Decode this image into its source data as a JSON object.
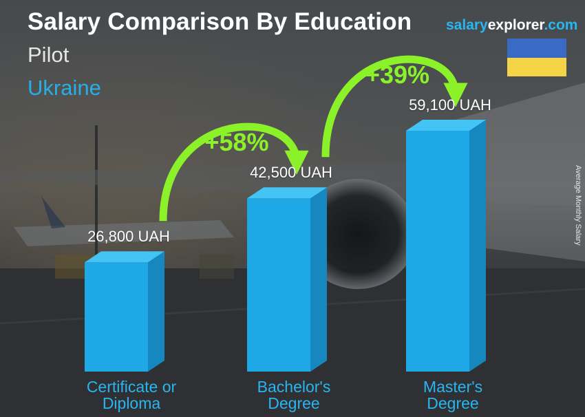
{
  "header": {
    "title": "Salary Comparison By Education",
    "subtitle": "Pilot",
    "country": "Ukraine"
  },
  "brand": {
    "part1": "salary",
    "part2": "explorer",
    "part3": ".com"
  },
  "flag": {
    "name": "ukraine-flag",
    "top_color": "#3a6bc4",
    "bottom_color": "#f5d547"
  },
  "colors": {
    "bar_front": "#1fa8e6",
    "bar_side": "#1787c0",
    "bar_top": "#44c4f5",
    "category": "#29b6f0",
    "percent": "#8bf22a"
  },
  "chart_data": {
    "type": "bar",
    "categories": [
      [
        "Certificate or",
        "Diploma"
      ],
      [
        "Bachelor's",
        "Degree"
      ],
      [
        "Master's",
        "Degree"
      ]
    ],
    "values": [
      26800,
      42500,
      59100
    ],
    "value_labels": [
      "26,800 UAH",
      "42,500 UAH",
      "59,100 UAH"
    ],
    "unit": "UAH",
    "ylabel": "Average Monthly Salary",
    "ylim": [
      0,
      70000
    ],
    "grid": false,
    "increases": [
      {
        "from": 0,
        "to": 1,
        "label": "+58%"
      },
      {
        "from": 1,
        "to": 2,
        "label": "+39%"
      }
    ]
  }
}
